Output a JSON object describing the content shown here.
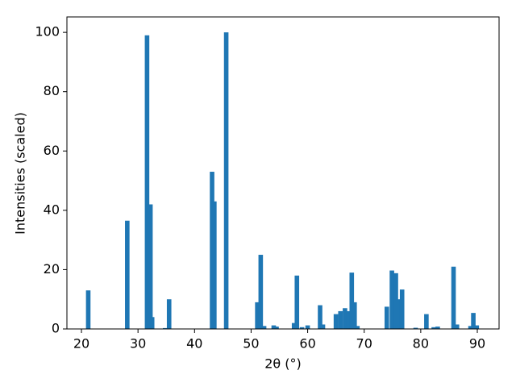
{
  "chart_data": {
    "type": "bar",
    "xlabel": "2θ (°)",
    "ylabel": "Intensities (scaled)",
    "color": "#1f77b4",
    "bar_width": 0.8,
    "x": [
      21.2,
      28.1,
      31.6,
      32.2,
      32.5,
      34.8,
      35.5,
      43.1,
      43.5,
      45.6,
      51.1,
      51.7,
      52.3,
      54.0,
      54.5,
      57.6,
      58.1,
      59.0,
      60.0,
      62.2,
      62.7,
      65.0,
      65.8,
      66.6,
      67.2,
      67.8,
      68.3,
      68.8,
      74.0,
      74.9,
      75.6,
      76.2,
      76.7,
      79.1,
      81.0,
      82.3,
      83.0,
      85.8,
      86.4,
      88.8,
      89.3,
      89.9
    ],
    "values": [
      13,
      36.5,
      99,
      42,
      4,
      0.3,
      10,
      53,
      43,
      100,
      9,
      25,
      1,
      1.2,
      0.8,
      2,
      18,
      0.6,
      1.2,
      8,
      1.5,
      5,
      6,
      7,
      6,
      19,
      9,
      1,
      7.5,
      19.7,
      18.8,
      10,
      13.3,
      0.4,
      5,
      0.6,
      0.8,
      21,
      1.5,
      1,
      5.4,
      1.2
    ],
    "xlim": [
      17.43,
      93.85
    ],
    "ylim": [
      0,
      105.2
    ],
    "xticks": [
      20,
      30,
      40,
      50,
      60,
      70,
      80,
      90
    ],
    "yticks": [
      0,
      20,
      40,
      60,
      80,
      100
    ]
  }
}
